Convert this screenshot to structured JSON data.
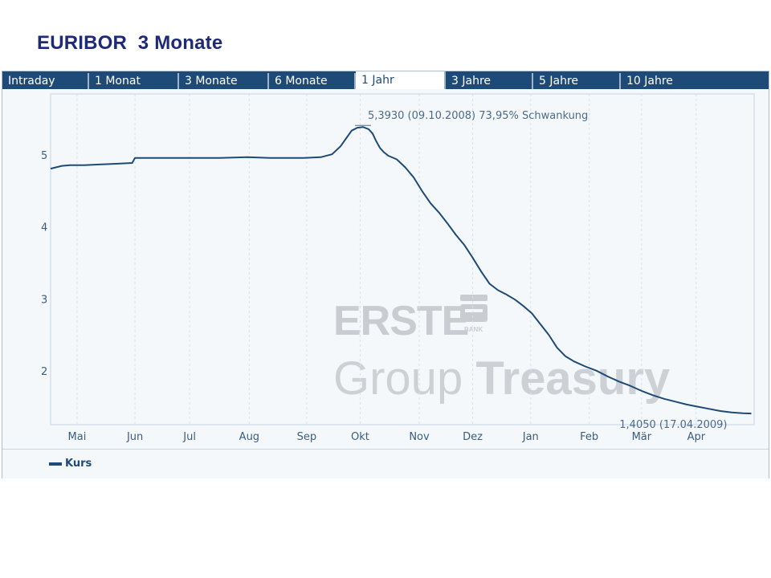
{
  "page": {
    "title": "EURIBOR  3 Monate"
  },
  "tabs": [
    {
      "label": "Intraday",
      "active": false
    },
    {
      "label": "1 Monat",
      "active": false
    },
    {
      "label": "3 Monate",
      "active": false
    },
    {
      "label": "6 Monate",
      "active": false
    },
    {
      "label": "1 Jahr",
      "active": true
    },
    {
      "label": "3 Jahre",
      "active": false
    },
    {
      "label": "5 Jahre",
      "active": false
    },
    {
      "label": "10 Jahre",
      "active": false
    }
  ],
  "colors": {
    "title": "#1e2a78",
    "tab_bg": "#1e4a78",
    "line": "#1e4a78",
    "plot_bg": "#f4f8fb",
    "grid": "#d7e2ec"
  },
  "watermark": {
    "brand": "ERSTE",
    "brand_small": "BANK",
    "line1": "Group ",
    "line2": "Treasury"
  },
  "legend": {
    "label": "Kurs",
    "placement": "bottom-left"
  },
  "chart_data": {
    "type": "line",
    "title": "",
    "xlabel": "",
    "ylabel": "",
    "ylim": [
      1.25,
      5.85
    ],
    "xlim": [
      0,
      12.5
    ],
    "grid": true,
    "y_ticks": [
      2,
      3,
      4,
      5
    ],
    "x_tick_labels": [
      "Mai",
      "Jun",
      "Jul",
      "Aug",
      "Sep",
      "Okt",
      "Nov",
      "Dez",
      "Jan",
      "Feb",
      "Mär",
      "Apr"
    ],
    "x_tick_positions": [
      0.47,
      1.5,
      2.47,
      3.53,
      4.55,
      5.5,
      6.55,
      7.5,
      8.53,
      9.57,
      10.5,
      11.47
    ],
    "annotations": {
      "max": "5,3930 (09.10.2008) 73,95% Schwankung",
      "last": "1,4050 (17.04.2009)"
    },
    "series": [
      {
        "name": "Kurs",
        "x": [
          0,
          0.2,
          0.35,
          0.6,
          0.9,
          1.2,
          1.45,
          1.5,
          1.6,
          2.0,
          2.5,
          3.0,
          3.5,
          3.9,
          4.2,
          4.5,
          4.8,
          5.0,
          5.15,
          5.25,
          5.35,
          5.45,
          5.55,
          5.65,
          5.72,
          5.78,
          5.85,
          5.92,
          6.0,
          6.15,
          6.3,
          6.45,
          6.6,
          6.75,
          6.9,
          7.05,
          7.2,
          7.35,
          7.5,
          7.65,
          7.8,
          7.95,
          8.1,
          8.25,
          8.4,
          8.55,
          8.7,
          8.85,
          9.0,
          9.15,
          9.3,
          9.5,
          9.7,
          9.9,
          10.1,
          10.3,
          10.5,
          10.7,
          10.9,
          11.1,
          11.3,
          11.5,
          11.7,
          11.9,
          12.1,
          12.3,
          12.45
        ],
        "y": [
          4.81,
          4.85,
          4.86,
          4.86,
          4.87,
          4.88,
          4.89,
          4.96,
          4.96,
          4.96,
          4.96,
          4.96,
          4.97,
          4.96,
          4.96,
          4.96,
          4.97,
          5.01,
          5.12,
          5.23,
          5.34,
          5.38,
          5.39,
          5.36,
          5.3,
          5.2,
          5.1,
          5.04,
          4.99,
          4.94,
          4.83,
          4.69,
          4.5,
          4.33,
          4.2,
          4.05,
          3.89,
          3.75,
          3.57,
          3.38,
          3.21,
          3.12,
          3.06,
          2.99,
          2.9,
          2.8,
          2.65,
          2.5,
          2.32,
          2.2,
          2.13,
          2.06,
          2.0,
          1.92,
          1.85,
          1.79,
          1.72,
          1.66,
          1.61,
          1.57,
          1.53,
          1.5,
          1.47,
          1.44,
          1.42,
          1.41,
          1.405
        ]
      }
    ]
  }
}
